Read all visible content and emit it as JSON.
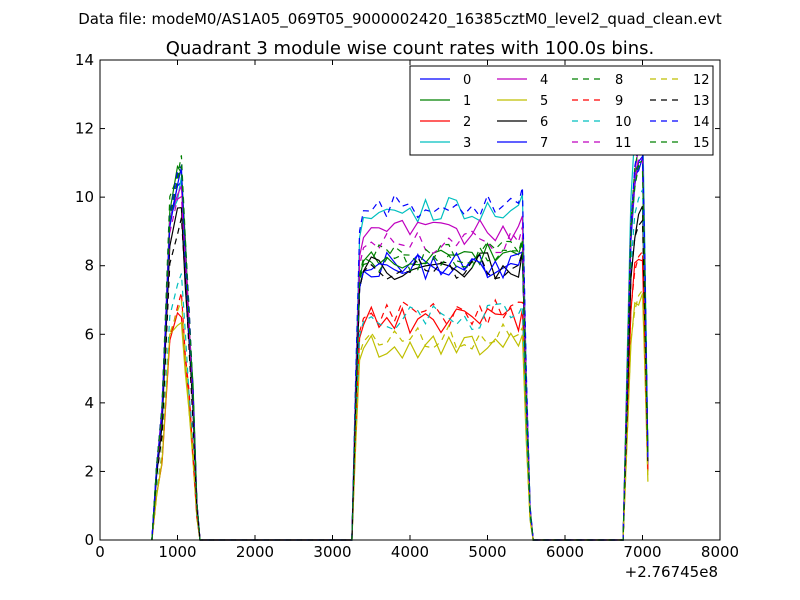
{
  "header": {
    "suptitle": "Data file: modeM0/AS1A05_069T05_9000002420_16385cztM0_level2_quad_clean.evt"
  },
  "chart_data": {
    "type": "line",
    "title": "Quadrant 3 module wise count rates with 100.0s bins.",
    "xlabel": "",
    "ylabel": "",
    "xlim": [
      0,
      8000
    ],
    "ylim": [
      0,
      14
    ],
    "x_offset_label": "+2.76745e8",
    "xticks": [
      0,
      1000,
      2000,
      3000,
      4000,
      5000,
      6000,
      7000,
      8000
    ],
    "yticks": [
      0,
      2,
      4,
      6,
      8,
      10,
      12,
      14
    ],
    "grid": false,
    "legend_position": "top-right",
    "legend_columns": 4,
    "shape": {
      "seg1": [
        [
          670,
          0
        ],
        [
          730,
          0.2
        ],
        [
          800,
          0.35
        ],
        [
          900,
          0.9
        ],
        [
          1000,
          1.0
        ],
        [
          1050,
          1.02
        ],
        [
          1100,
          0.8
        ],
        [
          1150,
          0.6
        ],
        [
          1200,
          0.4
        ],
        [
          1250,
          0.1
        ],
        [
          1290,
          0
        ]
      ],
      "off1": [
        1300,
        3250
      ],
      "seg2": [
        [
          3250,
          0
        ],
        [
          3300,
          0.5
        ],
        [
          3350,
          0.92
        ],
        [
          3400,
          0.98
        ],
        [
          3500,
          0.98
        ],
        [
          5450,
          1.0
        ],
        [
          5500,
          0.5
        ],
        [
          5550,
          0.1
        ],
        [
          5590,
          0
        ]
      ],
      "off2": [
        5600,
        6750
      ],
      "seg3": [
        [
          6750,
          0
        ],
        [
          6800,
          0.4
        ],
        [
          6850,
          0.8
        ],
        [
          6900,
          0.95
        ],
        [
          6950,
          1.0
        ],
        [
          7000,
          1.0
        ],
        [
          7030,
          0.7
        ],
        [
          7070,
          0.2
        ]
      ]
    },
    "series": [
      {
        "name": "0",
        "color": "#0000ff",
        "dash": false,
        "peak1": 10.5,
        "plateau": 8.0,
        "peak3": 11.0,
        "end": 2.2
      },
      {
        "name": "1",
        "color": "#008000",
        "dash": false,
        "peak1": 10.7,
        "plateau": 8.3,
        "peak3": 11.2,
        "end": 2.4
      },
      {
        "name": "2",
        "color": "#ff0000",
        "dash": false,
        "peak1": 6.6,
        "plateau": 6.4,
        "peak3": 8.3,
        "end": 2.0
      },
      {
        "name": "3",
        "color": "#00bfbf",
        "dash": false,
        "peak1": 10.2,
        "plateau": 9.6,
        "peak3": 12.4,
        "end": 2.5
      },
      {
        "name": "4",
        "color": "#bf00bf",
        "dash": false,
        "peak1": 10.3,
        "plateau": 9.0,
        "peak3": 11.5,
        "end": 2.3
      },
      {
        "name": "5",
        "color": "#bfbf00",
        "dash": false,
        "peak1": 6.4,
        "plateau": 5.7,
        "peak3": 7.1,
        "end": 1.7
      },
      {
        "name": "6",
        "color": "#000000",
        "dash": false,
        "peak1": 9.4,
        "plateau": 8.0,
        "peak3": 9.5,
        "end": 2.3
      },
      {
        "name": "7",
        "color": "#0000ff",
        "dash": false,
        "peak1": 10.4,
        "plateau": 8.0,
        "peak3": 11.0,
        "end": 2.3
      },
      {
        "name": "8",
        "color": "#008000",
        "dash": true,
        "peak1": 10.9,
        "plateau": 8.4,
        "peak3": 11.3,
        "end": 2.4
      },
      {
        "name": "9",
        "color": "#ff0000",
        "dash": true,
        "peak1": 6.8,
        "plateau": 6.6,
        "peak3": 8.2,
        "end": 2.0
      },
      {
        "name": "10",
        "color": "#00bfbf",
        "dash": true,
        "peak1": 7.4,
        "plateau": 6.5,
        "peak3": 10.2,
        "end": 2.3
      },
      {
        "name": "11",
        "color": "#bf00bf",
        "dash": true,
        "peak1": 9.8,
        "plateau": 8.7,
        "peak3": 11.2,
        "end": 2.3
      },
      {
        "name": "12",
        "color": "#bfbf00",
        "dash": true,
        "peak1": 6.6,
        "plateau": 5.9,
        "peak3": 7.2,
        "end": 1.8
      },
      {
        "name": "13",
        "color": "#000000",
        "dash": true,
        "peak1": 9.2,
        "plateau": 8.0,
        "peak3": 9.3,
        "end": 2.3
      },
      {
        "name": "14",
        "color": "#0000ff",
        "dash": true,
        "peak1": 10.8,
        "plateau": 9.8,
        "peak3": 11.5,
        "end": 2.4
      },
      {
        "name": "15",
        "color": "#008000",
        "dash": true,
        "peak1": 10.6,
        "plateau": 8.2,
        "peak3": 11.0,
        "end": 2.4
      }
    ]
  }
}
